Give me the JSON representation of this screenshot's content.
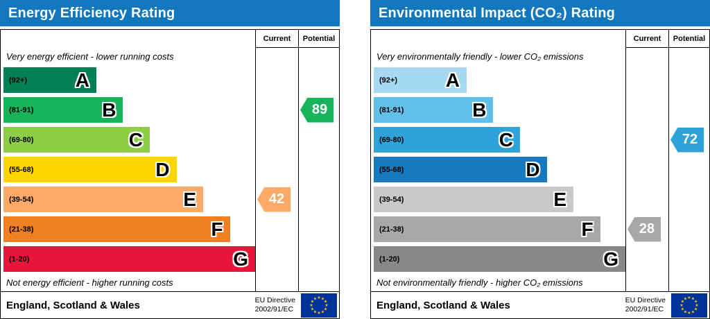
{
  "chart_data": [
    {
      "type": "bar",
      "title": "Energy Efficiency Rating",
      "header_color": "#1277bd",
      "top_caption": "Very energy efficient - lower running costs",
      "bottom_caption": "Not energy efficient - higher running costs",
      "columns": [
        "Current",
        "Potential"
      ],
      "bands": [
        {
          "letter": "A",
          "range": "(92+)",
          "min": 92,
          "max": 100,
          "color": "#008054"
        },
        {
          "letter": "B",
          "range": "(81-91)",
          "min": 81,
          "max": 91,
          "color": "#19b459"
        },
        {
          "letter": "C",
          "range": "(69-80)",
          "min": 69,
          "max": 80,
          "color": "#8dce46"
        },
        {
          "letter": "D",
          "range": "(55-68)",
          "min": 55,
          "max": 68,
          "color": "#ffd500"
        },
        {
          "letter": "E",
          "range": "(39-54)",
          "min": 39,
          "max": 54,
          "color": "#fcaa65"
        },
        {
          "letter": "F",
          "range": "(21-38)",
          "min": 21,
          "max": 38,
          "color": "#ef8023"
        },
        {
          "letter": "G",
          "range": "(1-20)",
          "min": 1,
          "max": 20,
          "color": "#e9153b"
        }
      ],
      "current": {
        "label": "Current",
        "value": 42,
        "color": "#fcaa65"
      },
      "potential": {
        "label": "Potential",
        "value": 89,
        "color": "#19b459"
      },
      "footer": {
        "region": "England, Scotland & Wales",
        "directive_lines": [
          "EU Directive",
          "2002/91/EC"
        ],
        "flag": {
          "name": "eu-flag",
          "background": "#003399",
          "star_color": "#ffcc00"
        }
      }
    },
    {
      "type": "bar",
      "title": "Environmental Impact (CO₂) Rating",
      "header_color": "#1277bd",
      "top_caption": "Very environmentally friendly - lower CO₂ emissions",
      "bottom_caption": "Not environmentally friendly - higher CO₂ emissions",
      "columns": [
        "Current",
        "Potential"
      ],
      "bands": [
        {
          "letter": "A",
          "range": "(92+)",
          "min": 92,
          "max": 100,
          "color": "#a4d9f1"
        },
        {
          "letter": "B",
          "range": "(81-91)",
          "min": 81,
          "max": 91,
          "color": "#62bfe8"
        },
        {
          "letter": "C",
          "range": "(69-80)",
          "min": 69,
          "max": 80,
          "color": "#30a2da"
        },
        {
          "letter": "D",
          "range": "(55-68)",
          "min": 55,
          "max": 68,
          "color": "#1879bf"
        },
        {
          "letter": "E",
          "range": "(39-54)",
          "min": 39,
          "max": 54,
          "color": "#c8c9cb"
        },
        {
          "letter": "F",
          "range": "(21-38)",
          "min": 21,
          "max": 38,
          "color": "#a7a8aa"
        },
        {
          "letter": "G",
          "range": "(1-20)",
          "min": 1,
          "max": 20,
          "color": "#87888a"
        }
      ],
      "current": {
        "label": "Current",
        "value": 28,
        "color": "#a7a8aa"
      },
      "potential": {
        "label": "Potential",
        "value": 72,
        "color": "#30a2da"
      },
      "footer": {
        "region": "England, Scotland & Wales",
        "directive_lines": [
          "EU Directive",
          "2002/91/EC"
        ],
        "flag": {
          "name": "eu-flag",
          "background": "#003399",
          "star_color": "#ffcc00"
        }
      }
    }
  ]
}
